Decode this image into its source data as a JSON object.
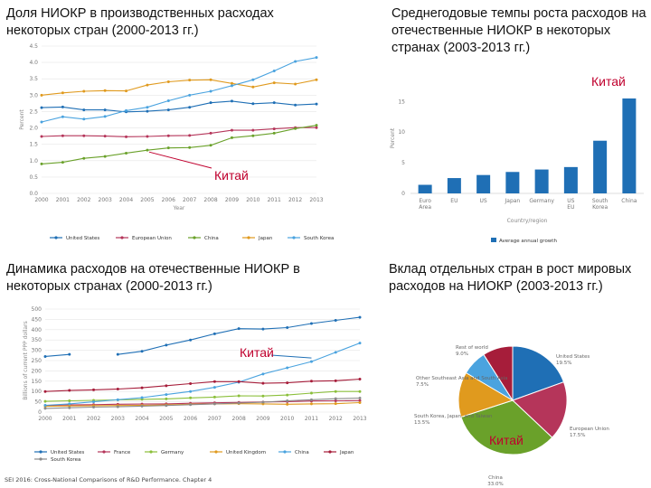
{
  "titles": {
    "p1": "Доля НИОКР в производственных расходах некоторых стран (2000-2013 гг.)",
    "p2": "Среднегодовые темпы роста расходов на отечественные НИОКР в некоторых странах (2003-2013 гг.)",
    "p3": "Динамика расходов на отечественные НИОКР в некоторых странах (2000-2013 гг.)",
    "p4": "Вклад отдельных стран в рост мировых расходов на НИОКР (2003-2013 гг.)"
  },
  "china_label": "Китай",
  "footer": "SEI 2016: Cross-National Comparisons of R&D Performance. Chapter 4",
  "chart_data": [
    {
      "type": "line",
      "ylabel": "Percent",
      "xlabel": "Year",
      "x": [
        "2000",
        "2001",
        "2002",
        "2003",
        "2004",
        "2005",
        "2006",
        "2007",
        "2008",
        "2009",
        "2010",
        "2011",
        "2012",
        "2013"
      ],
      "yticks": [
        "0.0",
        "0.5",
        "1.0",
        "1.5",
        "2.0",
        "2.5",
        "3.0",
        "3.5",
        "4.0",
        "4.5"
      ],
      "ylim": [
        0,
        4.5
      ],
      "series": [
        {
          "name": "United States",
          "color": "#1f6fb5",
          "values": [
            2.62,
            2.64,
            2.55,
            2.55,
            2.49,
            2.51,
            2.55,
            2.63,
            2.77,
            2.82,
            2.74,
            2.77,
            2.7,
            2.73
          ]
        },
        {
          "name": "European Union",
          "color": "#b5355a",
          "values": [
            1.74,
            1.76,
            1.76,
            1.75,
            1.73,
            1.74,
            1.76,
            1.77,
            1.84,
            1.93,
            1.93,
            1.97,
            2.01,
            2.01
          ]
        },
        {
          "name": "China",
          "color": "#6aa12a",
          "values": [
            0.9,
            0.95,
            1.07,
            1.13,
            1.23,
            1.32,
            1.39,
            1.4,
            1.47,
            1.7,
            1.76,
            1.84,
            1.98,
            2.08
          ]
        },
        {
          "name": "Japan",
          "color": "#e09a1e",
          "values": [
            3.0,
            3.07,
            3.12,
            3.14,
            3.13,
            3.31,
            3.41,
            3.46,
            3.47,
            3.36,
            3.25,
            3.38,
            3.34,
            3.47
          ]
        },
        {
          "name": "South Korea",
          "color": "#4aa3df",
          "values": [
            2.18,
            2.34,
            2.27,
            2.35,
            2.53,
            2.63,
            2.83,
            3.0,
            3.12,
            3.29,
            3.47,
            3.74,
            4.03,
            4.15
          ]
        }
      ],
      "legend_position": "bottom",
      "grid": true,
      "annotation": "Китай"
    },
    {
      "type": "bar",
      "ylabel": "Percent",
      "xlabel": "Country/region",
      "categories": [
        "Euro\nArea",
        "EU",
        "US",
        "Japan",
        "Germany",
        "US\nEU",
        "South\nKorea",
        "China"
      ],
      "values": [
        1.4,
        2.5,
        3.0,
        3.5,
        3.9,
        4.3,
        8.6,
        15.5
      ],
      "ylim": [
        0,
        18
      ],
      "yticks": [
        "0",
        "5",
        "10",
        "15"
      ],
      "color": "#1f6fb5",
      "legend": [
        "Average annual growth"
      ],
      "legend_position": "bottom",
      "grid": false,
      "annotation": "Китай"
    },
    {
      "type": "line",
      "ylabel": "Billions of current PPP dollars",
      "x": [
        "2000",
        "2001",
        "2002",
        "2003",
        "2004",
        "2005",
        "2006",
        "2007",
        "2008",
        "2009",
        "2010",
        "2011",
        "2012",
        "2013"
      ],
      "yticks": [
        "0",
        "50",
        "100",
        "150",
        "200",
        "250",
        "300",
        "350",
        "400",
        "450",
        "500"
      ],
      "ylim": [
        0,
        500
      ],
      "series": [
        {
          "name": "United States",
          "color": "#1f6fb5",
          "values": [
            270,
            280,
            null,
            280,
            295,
            325,
            350,
            380,
            405,
            403,
            410,
            430,
            445,
            460
          ]
        },
        {
          "name": "France",
          "color": "#b5355a",
          "values": [
            32,
            35,
            36,
            38,
            39,
            40,
            43,
            45,
            47,
            49,
            51,
            54,
            55,
            56
          ]
        },
        {
          "name": "Germany",
          "color": "#8bbf3a",
          "values": [
            52,
            55,
            57,
            59,
            62,
            64,
            69,
            73,
            79,
            78,
            83,
            92,
            100,
            100
          ]
        },
        {
          "name": "United Kingdom",
          "color": "#e09a1e",
          "values": [
            28,
            30,
            31,
            32,
            33,
            35,
            38,
            40,
            41,
            40,
            38,
            40,
            41,
            46
          ]
        },
        {
          "name": "China",
          "color": "#4aa3df",
          "values": [
            33,
            40,
            50,
            60,
            70,
            85,
            100,
            120,
            145,
            185,
            215,
            245,
            290,
            335
          ]
        },
        {
          "name": "Japan",
          "color": "#a61d3a",
          "values": [
            100,
            105,
            108,
            112,
            118,
            128,
            138,
            148,
            148,
            140,
            142,
            150,
            152,
            160
          ]
        },
        {
          "name": "South Korea",
          "color": "#8a8a8a",
          "values": [
            18,
            21,
            24,
            26,
            29,
            32,
            36,
            40,
            44,
            48,
            55,
            60,
            65,
            68
          ]
        }
      ],
      "legend_position": "bottom",
      "grid": true,
      "annotation": "Китай"
    },
    {
      "type": "pie",
      "labels": [
        "United States",
        "European Union",
        "China",
        "South Korea and others",
        "Other Asia",
        "Rest of world"
      ],
      "values": [
        19.5,
        17.5,
        33.0,
        13.5,
        7.5,
        9.0
      ],
      "colors": [
        "#1f6fb5",
        "#b5355a",
        "#6aa12a",
        "#e09a1e",
        "#4aa3df",
        "#a61d3a"
      ],
      "slice_labels": [
        "United States 19.5%",
        "European Union 17.5%",
        "China 33.0%",
        "South Korea, Japan, and Taiwan 13.5%",
        "Other Southeast Asia and South Asia 7.5%",
        "Rest of world 9.0%"
      ],
      "annotation": "Китай"
    }
  ]
}
